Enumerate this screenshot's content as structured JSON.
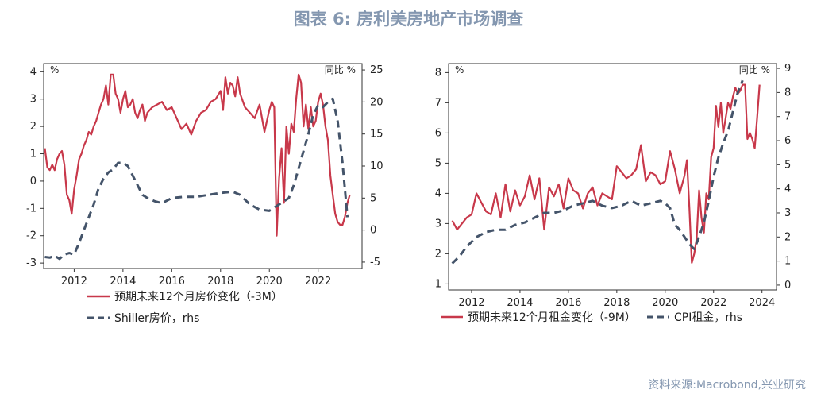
{
  "figure": {
    "title": "图表 6:  房利美房地产市场调查",
    "source": "资料来源:Macrobond,兴业研究"
  },
  "colors": {
    "series1": "#c8384a",
    "series2": "#44546a",
    "title": "#8497b0"
  },
  "chart_data": [
    {
      "type": "line",
      "left_unit": "%",
      "right_unit": "同比 %",
      "x_ticks": [
        2012,
        2014,
        2016,
        2018,
        2020,
        2022
      ],
      "xlim": [
        2010.75,
        2023.8
      ],
      "ylim_left": [
        -3.2,
        4.3
      ],
      "yticks_left": [
        -3,
        -2,
        -1,
        0,
        1,
        2,
        3,
        4
      ],
      "ylim_right": [
        -6,
        26
      ],
      "yticks_right": [
        -5,
        0,
        5,
        10,
        15,
        20,
        25
      ],
      "series": [
        {
          "name": "预期未来12个月房价变化（-3M）",
          "axis": "left",
          "style": "solid",
          "x": [
            2010.8,
            2010.9,
            2011.0,
            2011.1,
            2011.2,
            2011.3,
            2011.4,
            2011.5,
            2011.6,
            2011.7,
            2011.8,
            2011.9,
            2012.0,
            2012.1,
            2012.2,
            2012.3,
            2012.4,
            2012.5,
            2012.6,
            2012.7,
            2012.8,
            2012.9,
            2013.0,
            2013.1,
            2013.2,
            2013.3,
            2013.4,
            2013.5,
            2013.6,
            2013.7,
            2013.8,
            2013.9,
            2014.0,
            2014.1,
            2014.2,
            2014.3,
            2014.4,
            2014.5,
            2014.6,
            2014.7,
            2014.8,
            2014.9,
            2015.0,
            2015.2,
            2015.4,
            2015.6,
            2015.8,
            2016.0,
            2016.2,
            2016.4,
            2016.6,
            2016.8,
            2017.0,
            2017.2,
            2017.4,
            2017.6,
            2017.8,
            2018.0,
            2018.1,
            2018.2,
            2018.3,
            2018.4,
            2018.5,
            2018.6,
            2018.7,
            2018.8,
            2019.0,
            2019.2,
            2019.4,
            2019.6,
            2019.8,
            2020.0,
            2020.1,
            2020.2,
            2020.3,
            2020.4,
            2020.5,
            2020.6,
            2020.7,
            2020.8,
            2020.9,
            2021.0,
            2021.1,
            2021.2,
            2021.3,
            2021.4,
            2021.5,
            2021.6,
            2021.7,
            2021.8,
            2021.9,
            2022.0,
            2022.1,
            2022.2,
            2022.3,
            2022.4,
            2022.5,
            2022.6,
            2022.7,
            2022.8,
            2022.9,
            2023.0,
            2023.1,
            2023.2,
            2023.3
          ],
          "values": [
            1.2,
            0.5,
            0.4,
            0.6,
            0.4,
            0.8,
            1.0,
            1.1,
            0.6,
            -0.5,
            -0.7,
            -1.2,
            -0.3,
            0.2,
            0.8,
            1.0,
            1.3,
            1.5,
            1.8,
            1.7,
            2.0,
            2.2,
            2.5,
            2.8,
            3.0,
            3.5,
            2.8,
            3.9,
            3.9,
            3.2,
            3.0,
            2.5,
            3.0,
            3.3,
            2.7,
            2.8,
            3.0,
            2.5,
            2.3,
            2.6,
            2.8,
            2.2,
            2.5,
            2.7,
            2.8,
            2.9,
            2.6,
            2.7,
            2.3,
            1.9,
            2.1,
            1.7,
            2.2,
            2.5,
            2.6,
            2.9,
            3.0,
            3.3,
            2.6,
            3.8,
            3.2,
            3.6,
            3.5,
            3.1,
            3.8,
            3.2,
            2.7,
            2.5,
            2.3,
            2.8,
            1.8,
            2.6,
            2.9,
            2.7,
            -2.0,
            0.1,
            1.2,
            -0.8,
            2.0,
            1.0,
            2.1,
            1.8,
            3.0,
            3.9,
            3.6,
            2.0,
            2.8,
            1.9,
            2.7,
            2.0,
            2.2,
            2.9,
            3.2,
            2.8,
            2.0,
            1.5,
            0.2,
            -0.5,
            -1.2,
            -1.5,
            -1.6,
            -1.6,
            -1.3,
            -0.8,
            -0.5
          ]
        },
        {
          "name": "Shiller房价，rhs",
          "axis": "right",
          "style": "dashed",
          "x": [
            2010.8,
            2011.0,
            2011.2,
            2011.4,
            2011.6,
            2011.8,
            2012.0,
            2012.2,
            2012.4,
            2012.6,
            2012.8,
            2013.0,
            2013.2,
            2013.4,
            2013.6,
            2013.8,
            2014.0,
            2014.2,
            2014.4,
            2014.6,
            2014.8,
            2015.0,
            2015.3,
            2015.6,
            2016.0,
            2016.5,
            2017.0,
            2017.5,
            2018.0,
            2018.5,
            2018.8,
            2019.2,
            2019.6,
            2020.0,
            2020.4,
            2020.6,
            2020.8,
            2021.0,
            2021.3,
            2021.6,
            2021.8,
            2022.0,
            2022.2,
            2022.4,
            2022.6,
            2022.8,
            2023.0,
            2023.2
          ],
          "values": [
            -4.2,
            -4.3,
            -4.0,
            -4.5,
            -3.8,
            -3.6,
            -3.8,
            -2.0,
            0.0,
            2.0,
            4.0,
            6.5,
            8.0,
            9.0,
            9.5,
            10.5,
            10.5,
            10.0,
            8.5,
            7.0,
            5.5,
            5.0,
            4.5,
            4.2,
            5.0,
            5.2,
            5.2,
            5.5,
            5.8,
            6.0,
            5.5,
            4.0,
            3.2,
            3.0,
            4.0,
            4.5,
            5.0,
            7.0,
            11.0,
            15.0,
            18.0,
            19.5,
            19.2,
            20.0,
            20.5,
            17.0,
            10.5,
            2.0
          ]
        }
      ]
    },
    {
      "type": "line",
      "left_unit": "%",
      "right_unit": "同比 %",
      "x_ticks": [
        2012,
        2014,
        2016,
        2018,
        2020,
        2022,
        2024
      ],
      "xlim": [
        2011.05,
        2024.6
      ],
      "ylim_left": [
        0.8,
        8.3
      ],
      "yticks_left": [
        1,
        2,
        3,
        4,
        5,
        6,
        7,
        8
      ],
      "ylim_right": [
        -0.2,
        9.2
      ],
      "yticks_right": [
        0,
        1,
        2,
        3,
        4,
        5,
        6,
        7,
        8,
        9
      ],
      "series": [
        {
          "name": "预期未来12个月租金变化（-9M）",
          "axis": "left",
          "style": "solid",
          "x": [
            2011.2,
            2011.4,
            2011.6,
            2011.8,
            2012.0,
            2012.2,
            2012.4,
            2012.6,
            2012.8,
            2013.0,
            2013.2,
            2013.4,
            2013.6,
            2013.8,
            2014.0,
            2014.2,
            2014.4,
            2014.6,
            2014.8,
            2015.0,
            2015.2,
            2015.4,
            2015.6,
            2015.8,
            2016.0,
            2016.2,
            2016.4,
            2016.6,
            2016.8,
            2017.0,
            2017.2,
            2017.4,
            2017.6,
            2017.8,
            2018.0,
            2018.2,
            2018.4,
            2018.6,
            2018.8,
            2019.0,
            2019.2,
            2019.4,
            2019.6,
            2019.8,
            2020.0,
            2020.2,
            2020.4,
            2020.6,
            2020.8,
            2020.9,
            2021.0,
            2021.1,
            2021.2,
            2021.3,
            2021.4,
            2021.5,
            2021.6,
            2021.7,
            2021.8,
            2021.9,
            2022.0,
            2022.1,
            2022.2,
            2022.3,
            2022.4,
            2022.5,
            2022.6,
            2022.7,
            2022.8,
            2022.9,
            2023.0,
            2023.1,
            2023.2,
            2023.3,
            2023.4,
            2023.5,
            2023.6,
            2023.7,
            2023.8,
            2023.9
          ],
          "values": [
            3.1,
            2.8,
            3.0,
            3.2,
            3.3,
            4.0,
            3.7,
            3.4,
            3.3,
            4.0,
            3.2,
            4.3,
            3.4,
            4.1,
            3.6,
            3.9,
            4.6,
            3.8,
            4.5,
            2.8,
            4.2,
            3.9,
            4.3,
            3.5,
            4.5,
            4.1,
            4.0,
            3.5,
            4.0,
            4.2,
            3.6,
            4.0,
            3.9,
            3.8,
            4.9,
            4.7,
            4.5,
            4.6,
            4.8,
            5.6,
            4.4,
            4.7,
            4.6,
            4.3,
            4.4,
            5.4,
            4.8,
            4.0,
            4.6,
            5.1,
            3.5,
            1.7,
            2.0,
            2.5,
            4.1,
            3.2,
            2.7,
            4.0,
            3.8,
            5.2,
            5.5,
            6.9,
            6.2,
            7.0,
            6.0,
            6.5,
            7.0,
            6.8,
            7.2,
            7.5,
            7.3,
            7.4,
            7.6,
            7.6,
            5.8,
            6.0,
            5.8,
            5.5,
            6.5,
            7.6
          ]
        },
        {
          "name": "CPI租金，rhs",
          "axis": "right",
          "style": "dashed",
          "x": [
            2011.2,
            2011.5,
            2011.8,
            2012.2,
            2012.6,
            2013.0,
            2013.4,
            2013.8,
            2014.2,
            2014.6,
            2015.0,
            2015.4,
            2015.8,
            2016.2,
            2016.6,
            2017.0,
            2017.4,
            2017.8,
            2018.2,
            2018.6,
            2019.0,
            2019.4,
            2019.8,
            2020.0,
            2020.2,
            2020.4,
            2020.6,
            2020.8,
            2021.0,
            2021.2,
            2021.4,
            2021.6,
            2021.8,
            2022.0,
            2022.2,
            2022.4,
            2022.6,
            2022.8,
            2023.0,
            2023.2
          ],
          "values": [
            0.9,
            1.2,
            1.6,
            2.0,
            2.2,
            2.3,
            2.3,
            2.5,
            2.6,
            2.8,
            3.0,
            3.0,
            3.1,
            3.3,
            3.4,
            3.5,
            3.3,
            3.2,
            3.3,
            3.5,
            3.3,
            3.4,
            3.5,
            3.4,
            3.2,
            2.5,
            2.3,
            2.0,
            1.7,
            1.5,
            2.0,
            2.6,
            3.5,
            4.5,
            5.3,
            5.9,
            6.4,
            7.2,
            8.0,
            8.5
          ]
        }
      ]
    }
  ]
}
